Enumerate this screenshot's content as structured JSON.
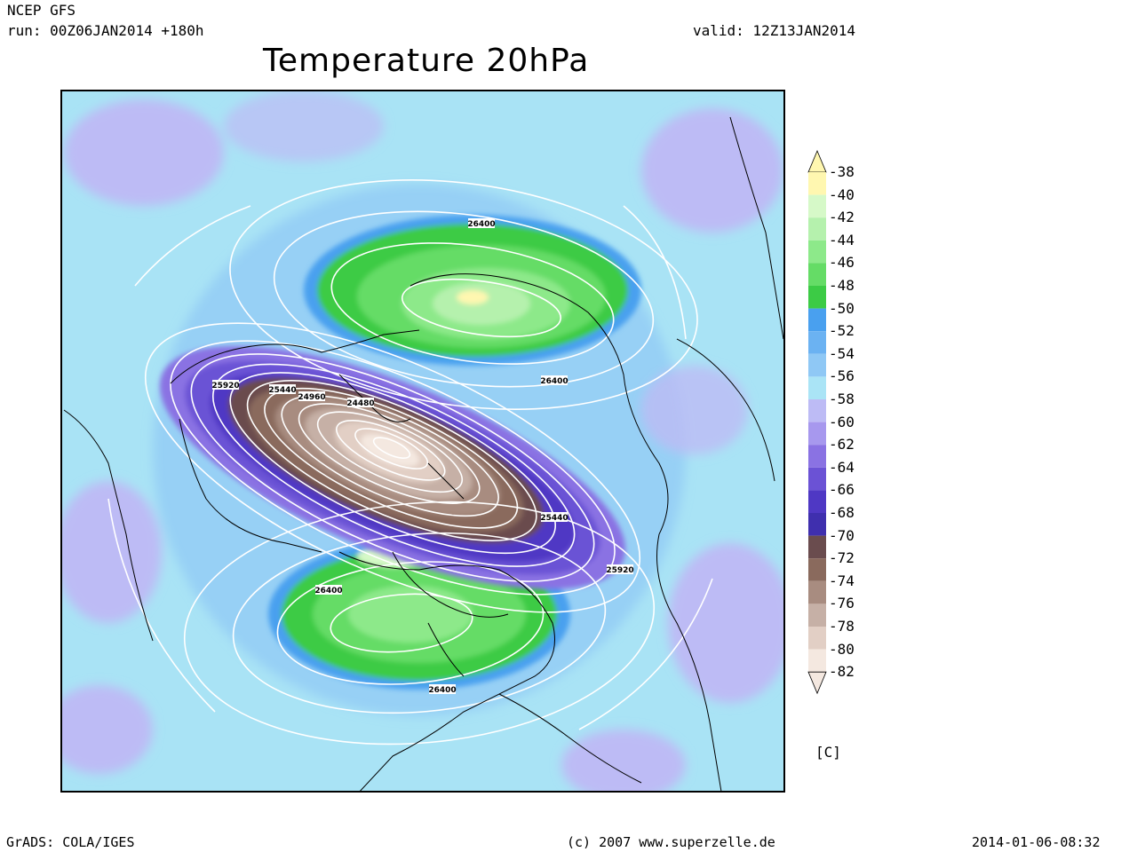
{
  "header": {
    "model": "NCEP GFS",
    "run": "run: 00Z06JAN2014 +180h",
    "valid": "valid: 12Z13JAN2014",
    "title": "Temperature 20hPa"
  },
  "colorbar": {
    "ticks": [
      "-38",
      "-40",
      "-42",
      "-44",
      "-46",
      "-48",
      "-50",
      "-52",
      "-54",
      "-56",
      "-58",
      "-60",
      "-62",
      "-64",
      "-66",
      "-68",
      "-70",
      "-72",
      "-74",
      "-76",
      "-78",
      "-80",
      "-82"
    ],
    "colors": [
      "#fff7b0",
      "#d6f9c8",
      "#b5f1ad",
      "#8de98a",
      "#65dc66",
      "#3ccb45",
      "#49a0ef",
      "#6bb2f2",
      "#8fc8f5",
      "#aae4f6",
      "#bdbbf5",
      "#a798ee",
      "#8a72e3",
      "#6b52d5",
      "#4f38c4",
      "#3f2fae",
      "#6a4c4e",
      "#8a6a5d",
      "#a88c80",
      "#c6b0a6",
      "#e2cfc5",
      "#f4e8e0"
    ],
    "units": "[C]"
  },
  "contour_labels": [
    {
      "text": "26400",
      "pos": [
        540,
        250
      ]
    },
    {
      "text": "26400",
      "pos": [
        622,
        427
      ]
    },
    {
      "text": "26400",
      "pos": [
        368,
        663
      ]
    },
    {
      "text": "26400",
      "pos": [
        496,
        775
      ]
    },
    {
      "text": "25920",
      "pos": [
        252,
        432
      ]
    },
    {
      "text": "25920",
      "pos": [
        696,
        640
      ]
    },
    {
      "text": "25440",
      "pos": [
        316,
        437
      ]
    },
    {
      "text": "25440",
      "pos": [
        622,
        581
      ]
    },
    {
      "text": "24960",
      "pos": [
        349,
        445
      ]
    },
    {
      "text": "24480",
      "pos": [
        404,
        452
      ]
    }
  ],
  "footer": {
    "left": "GrADS: COLA/IGES",
    "middle": "(c) 2007 www.superzelle.de",
    "right": "2014-01-06-08:32"
  }
}
